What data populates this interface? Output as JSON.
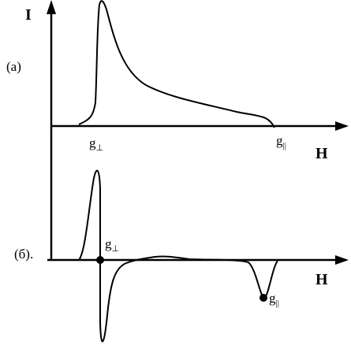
{
  "top_panel": {
    "y_axis_label": "I",
    "panel_label": "(a)",
    "x_axis_label": "H",
    "markers": [
      {
        "letter": "g",
        "subscript": "⊥"
      },
      {
        "letter": "g",
        "subscript": "||"
      }
    ]
  },
  "bottom_panel": {
    "panel_label": "(б).",
    "x_axis_label": "H",
    "markers": [
      {
        "letter": "g",
        "subscript": "⊥"
      },
      {
        "letter": "g",
        "subscript": "||"
      }
    ]
  }
}
